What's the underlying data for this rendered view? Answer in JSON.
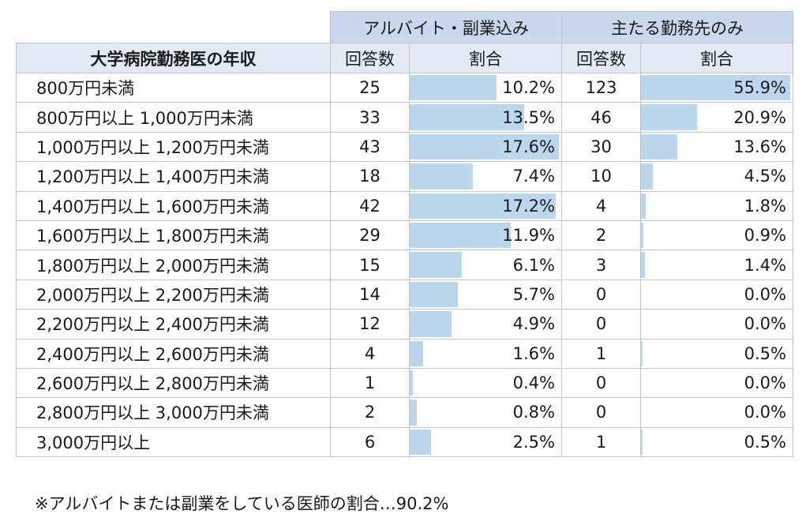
{
  "table": {
    "row_header": "大学病院勤務医の年収",
    "groups": [
      "アルバイト・副業込み",
      "主たる勤務先のみ"
    ],
    "sub_headers": [
      "回答数",
      "割合",
      "回答数",
      "割合"
    ],
    "bar_color": "#bcd6ee",
    "rows": [
      {
        "label": "800万円未満",
        "a_count": "25",
        "a_pct": 10.2,
        "a_pct_text": "10.2%",
        "b_count": "123",
        "b_pct": 55.9,
        "b_pct_text": "55.9%"
      },
      {
        "label": "800万円以上 1,000万円未満",
        "a_count": "33",
        "a_pct": 13.5,
        "a_pct_text": "13.5%",
        "b_count": "46",
        "b_pct": 20.9,
        "b_pct_text": "20.9%"
      },
      {
        "label": "1,000万円以上 1,200万円未満",
        "a_count": "43",
        "a_pct": 17.6,
        "a_pct_text": "17.6%",
        "b_count": "30",
        "b_pct": 13.6,
        "b_pct_text": "13.6%"
      },
      {
        "label": "1,200万円以上 1,400万円未満",
        "a_count": "18",
        "a_pct": 7.4,
        "a_pct_text": "7.4%",
        "b_count": "10",
        "b_pct": 4.5,
        "b_pct_text": "4.5%"
      },
      {
        "label": "1,400万円以上 1,600万円未満",
        "a_count": "42",
        "a_pct": 17.2,
        "a_pct_text": "17.2%",
        "b_count": "4",
        "b_pct": 1.8,
        "b_pct_text": "1.8%"
      },
      {
        "label": "1,600万円以上 1,800万円未満",
        "a_count": "29",
        "a_pct": 11.9,
        "a_pct_text": "11.9%",
        "b_count": "2",
        "b_pct": 0.9,
        "b_pct_text": "0.9%"
      },
      {
        "label": "1,800万円以上 2,000万円未満",
        "a_count": "15",
        "a_pct": 6.1,
        "a_pct_text": "6.1%",
        "b_count": "3",
        "b_pct": 1.4,
        "b_pct_text": "1.4%"
      },
      {
        "label": "2,000万円以上 2,200万円未満",
        "a_count": "14",
        "a_pct": 5.7,
        "a_pct_text": "5.7%",
        "b_count": "0",
        "b_pct": 0.0,
        "b_pct_text": "0.0%"
      },
      {
        "label": "2,200万円以上 2,400万円未満",
        "a_count": "12",
        "a_pct": 4.9,
        "a_pct_text": "4.9%",
        "b_count": "0",
        "b_pct": 0.0,
        "b_pct_text": "0.0%"
      },
      {
        "label": "2,400万円以上 2,600万円未満",
        "a_count": "4",
        "a_pct": 1.6,
        "a_pct_text": "1.6%",
        "b_count": "1",
        "b_pct": 0.5,
        "b_pct_text": "0.5%"
      },
      {
        "label": "2,600万円以上 2,800万円未満",
        "a_count": "1",
        "a_pct": 0.4,
        "a_pct_text": "0.4%",
        "b_count": "0",
        "b_pct": 0.0,
        "b_pct_text": "0.0%"
      },
      {
        "label": "2,800万円以上 3,000万円未満",
        "a_count": "2",
        "a_pct": 0.8,
        "a_pct_text": "0.8%",
        "b_count": "0",
        "b_pct": 0.0,
        "b_pct_text": "0.0%"
      },
      {
        "label": "3,000万円以上",
        "a_count": "6",
        "a_pct": 2.5,
        "a_pct_text": "2.5%",
        "b_count": "1",
        "b_pct": 0.5,
        "b_pct_text": "0.5%"
      }
    ]
  },
  "footnote": "※アルバイトまたは副業をしている医師の割合…90.2%"
}
